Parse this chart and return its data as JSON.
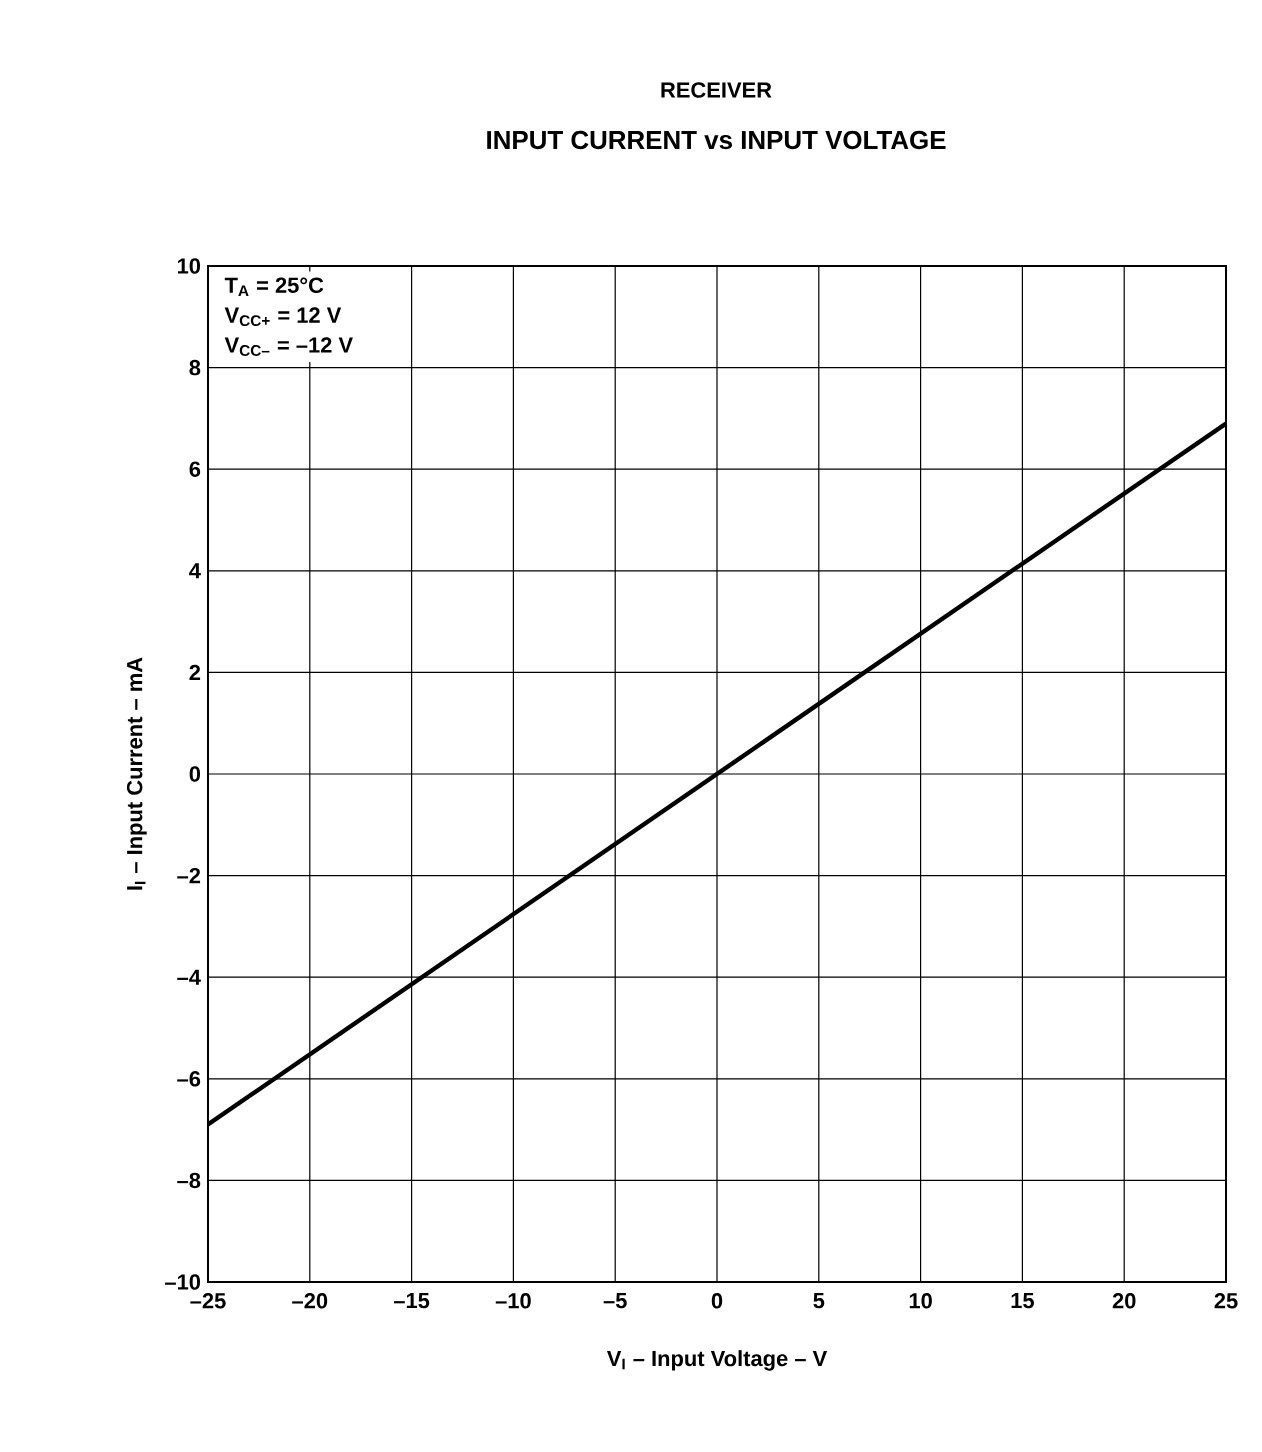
{
  "chart_data": {
    "type": "line",
    "title": "RECEIVER",
    "subtitle": "INPUT CURRENT vs INPUT VOLTAGE",
    "xlabel": "V$_{I}$ – Input Voltage – V",
    "ylabel": "I$_{I}$ – Input Current – mA",
    "x": [
      -25,
      25
    ],
    "series": [
      {
        "color": "#000000",
        "values": [
          -6.9,
          6.9
        ]
      }
    ],
    "xlim": [
      -25,
      25
    ],
    "ylim": [
      -10,
      10
    ],
    "xticks": [
      {
        "value": -25,
        "label": "–25"
      },
      {
        "value": -20,
        "label": "–20"
      },
      {
        "value": -15,
        "label": "–15"
      },
      {
        "value": -10,
        "label": "–10"
      },
      {
        "value": -5,
        "label": "–5"
      },
      0,
      5,
      10,
      15,
      20,
      25
    ],
    "yticks": [
      {
        "value": -10,
        "label": "–10"
      },
      {
        "value": -8,
        "label": "–8"
      },
      {
        "value": -6,
        "label": "–6"
      },
      {
        "value": -4,
        "label": "–4"
      },
      {
        "value": -2,
        "label": "–2"
      },
      0,
      2,
      4,
      6,
      8,
      10
    ],
    "grid": true,
    "marker": "none",
    "line_style": "solid",
    "annotations": [
      "T$_{A}$ = 25°C",
      "V$_{CC+}$ = 12 V",
      "V$_{CC–}$ = –12 V"
    ]
  }
}
